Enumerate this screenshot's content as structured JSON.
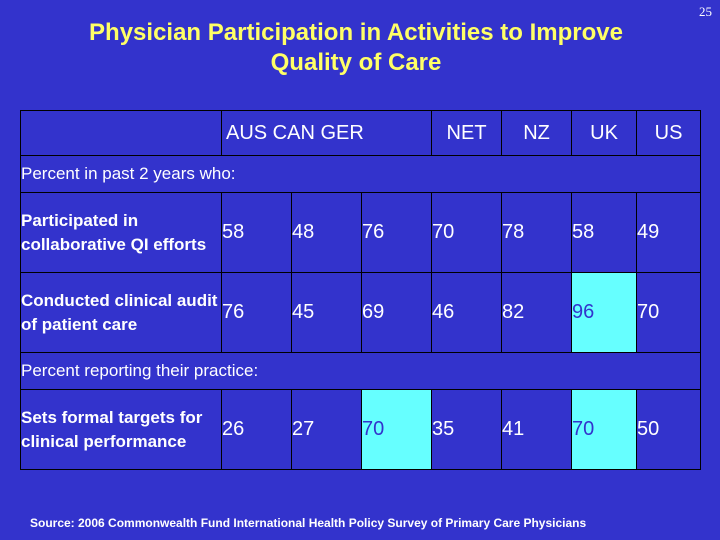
{
  "slide_number": "25",
  "title": {
    "line1": "Physician Participation in Activities to Improve",
    "line2": "Quality of Care"
  },
  "header": {
    "countries_left": "AUS CAN GER",
    "net": "NET",
    "nz": "NZ",
    "uk": "UK",
    "us": "US"
  },
  "sections": [
    {
      "label": "Percent in past 2 years who:",
      "rows": [
        {
          "label": "Participated in collaborative QI efforts",
          "values": [
            "58",
            "48",
            "76",
            "70",
            "78",
            "58",
            "49"
          ]
        },
        {
          "label": "Conducted clinical audit of patient care",
          "values": [
            "76",
            "45",
            "69",
            "46",
            "82",
            "96",
            "70"
          ]
        }
      ]
    },
    {
      "label": "Percent reporting their practice:",
      "rows": [
        {
          "label": "Sets formal targets for clinical performance",
          "values": [
            "26",
            "27",
            "70",
            "35",
            "41",
            "70",
            "50"
          ]
        }
      ]
    }
  ],
  "highlight_color": "#66ffff",
  "background_color": "#3333cc",
  "title_color": "#ffff66",
  "source": "Source: 2006 Commonwealth Fund International Health Policy Survey of Primary Care Physicians"
}
